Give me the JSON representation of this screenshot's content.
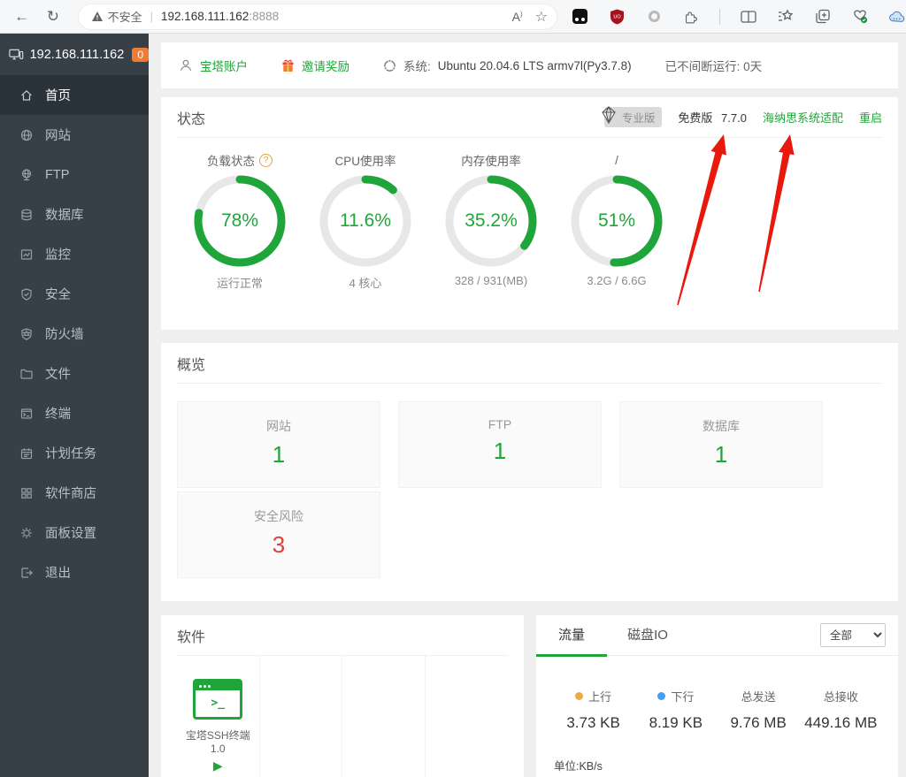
{
  "browser": {
    "security_label": "不安全",
    "url_host": "192.168.111.162",
    "url_port": ":8888"
  },
  "sidebar": {
    "host": "192.168.111.162",
    "badge": "0",
    "items": [
      {
        "label": "首页",
        "icon": "home-icon",
        "active": true
      },
      {
        "label": "网站",
        "icon": "globe-icon",
        "active": false
      },
      {
        "label": "FTP",
        "icon": "ftp-icon",
        "active": false
      },
      {
        "label": "数据库",
        "icon": "database-icon",
        "active": false
      },
      {
        "label": "监控",
        "icon": "monitor-chart-icon",
        "active": false
      },
      {
        "label": "安全",
        "icon": "shield-check-icon",
        "active": false
      },
      {
        "label": "防火墙",
        "icon": "firewall-icon",
        "active": false
      },
      {
        "label": "文件",
        "icon": "folder-icon",
        "active": false
      },
      {
        "label": "终端",
        "icon": "terminal-icon",
        "active": false
      },
      {
        "label": "计划任务",
        "icon": "calendar-icon",
        "active": false
      },
      {
        "label": "软件商店",
        "icon": "app-grid-icon",
        "active": false
      },
      {
        "label": "面板设置",
        "icon": "gear-icon",
        "active": false
      },
      {
        "label": "退出",
        "icon": "logout-icon",
        "active": false
      }
    ]
  },
  "topbar": {
    "account": "宝塔账户",
    "invite": "邀请奖励",
    "system_label": "系统:",
    "system_value": "Ubuntu 20.04.6 LTS armv7l(Py3.7.8)",
    "uptime": "已不间断运行: 0天"
  },
  "status": {
    "title": "状态",
    "pro_badge": "专业版",
    "free_label": "免费版",
    "version": "7.7.0",
    "link_adapt": "海纳思系统适配",
    "link_restart": "重启",
    "gauges": [
      {
        "title": "负载状态",
        "value": 78,
        "percent": "78%",
        "sub": "运行正常"
      },
      {
        "title": "CPU使用率",
        "value": 11.6,
        "percent": "11.6%",
        "sub": "4 核心"
      },
      {
        "title": "内存使用率",
        "value": 35.2,
        "percent": "35.2%",
        "sub": "328 / 931(MB)"
      },
      {
        "title": "/",
        "value": 51,
        "percent": "51%",
        "sub": "3.2G / 6.6G"
      }
    ]
  },
  "overview": {
    "title": "概览",
    "cards": [
      {
        "label": "网站",
        "value": "1",
        "color": "green"
      },
      {
        "label": "FTP",
        "value": "1",
        "color": "green"
      },
      {
        "label": "数据库",
        "value": "1",
        "color": "green"
      },
      {
        "label": "安全风险",
        "value": "3",
        "color": "red"
      }
    ]
  },
  "software": {
    "title": "软件",
    "apps": [
      {
        "name": "宝塔SSH终端 1.0",
        "prompt_glyph": ">_"
      }
    ]
  },
  "traffic": {
    "tabs": [
      "流量",
      "磁盘IO"
    ],
    "active_tab": "流量",
    "filter_selected": "全部",
    "stats": [
      {
        "label": "上行",
        "value": "3.73 KB",
        "dot_color": "#efa944"
      },
      {
        "label": "下行",
        "value": "8.19 KB",
        "dot_color": "#429ef5"
      },
      {
        "label": "总发送",
        "value": "9.76 MB"
      },
      {
        "label": "总接收",
        "value": "449.16 MB"
      }
    ],
    "unit": "单位:KB/s"
  },
  "colors": {
    "accent_green": "#20a53a",
    "risk_red": "#d9433c",
    "arrow_red": "#e8180c",
    "sidebar_bg": "#373f47",
    "badge_orange": "#ef7b35"
  }
}
